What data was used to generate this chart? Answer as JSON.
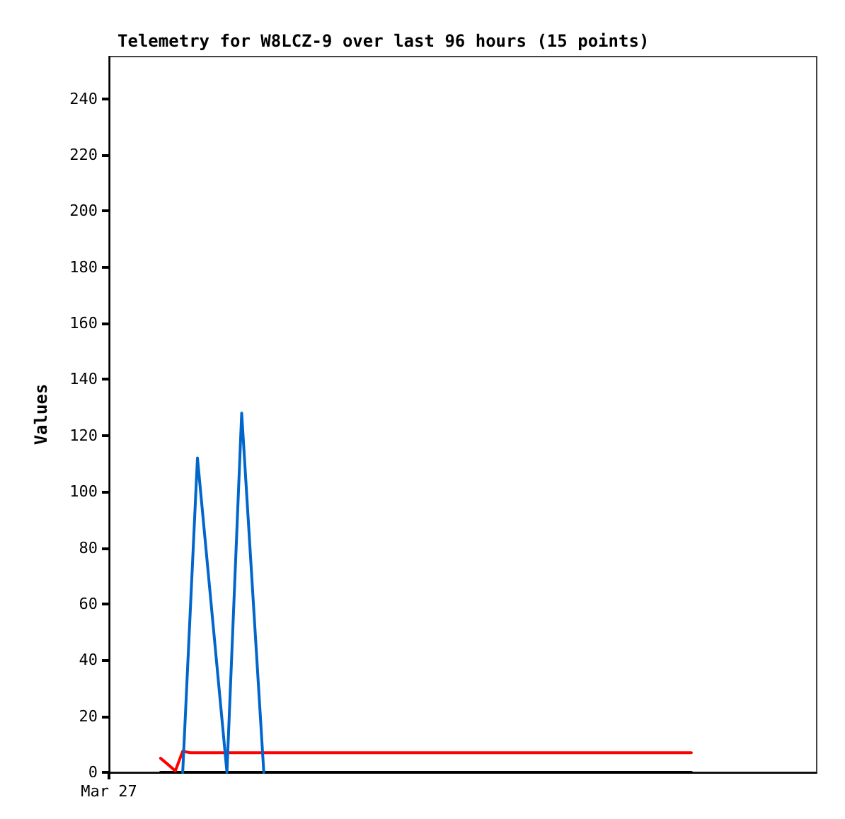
{
  "chart_data": {
    "type": "line",
    "title": "Telemetry for W8LCZ-9 over last 96 hours (15 points)",
    "ylabel": "Values",
    "categories": [
      "Mar 27",
      null,
      null,
      null,
      null,
      null,
      null,
      null,
      null,
      null,
      null,
      null,
      null,
      null,
      null,
      null,
      null,
      null,
      null,
      null,
      null,
      null,
      null,
      null,
      null,
      null,
      null,
      null,
      null,
      null,
      null,
      null,
      null,
      null,
      null,
      null,
      null,
      null,
      null,
      null,
      null,
      null,
      null,
      null,
      null,
      null,
      null,
      null,
      null,
      null,
      null,
      null,
      null,
      null,
      null,
      null,
      null,
      null,
      null,
      null,
      null,
      null,
      null,
      null,
      null,
      null,
      null,
      null,
      null,
      null,
      null,
      null,
      null,
      null,
      null,
      null,
      null,
      null,
      null,
      null,
      null,
      null,
      null,
      null,
      null,
      null,
      null,
      null,
      null,
      null,
      null,
      null,
      null,
      null,
      null,
      null,
      null
    ],
    "ylim": [
      0,
      255
    ],
    "yticks": [
      0,
      20,
      40,
      60,
      80,
      100,
      120,
      140,
      160,
      180,
      200,
      220,
      240
    ],
    "grid": false,
    "marker": "none",
    "line_style": "solid",
    "series": [
      {
        "color": "#000000",
        "values": [
          null,
          null,
          null,
          null,
          null,
          null,
          null,
          0,
          0,
          0,
          0,
          0,
          0,
          0,
          0,
          0,
          0,
          0,
          0,
          0,
          0,
          0,
          0,
          0,
          0,
          0,
          0,
          0,
          0,
          0,
          0,
          0,
          0,
          0,
          0,
          0,
          0,
          0,
          0,
          0,
          0,
          0,
          0,
          0,
          0,
          0,
          0,
          0,
          0,
          0,
          0,
          0,
          0,
          0,
          0,
          0,
          0,
          0,
          0,
          0,
          0,
          0,
          0,
          0,
          0,
          0,
          0,
          0,
          0,
          0,
          0,
          0,
          0,
          0,
          0,
          0,
          0,
          0,
          0,
          0,
          null,
          null,
          null,
          null,
          null,
          null,
          null,
          null,
          null,
          null,
          null,
          null,
          null,
          null,
          null,
          null,
          null
        ]
      },
      {
        "color": "#ff0000",
        "values": [
          null,
          null,
          null,
          null,
          null,
          null,
          null,
          5,
          2.8,
          0.5,
          7.5,
          7,
          7,
          7,
          7,
          7,
          7,
          7,
          7,
          7,
          7,
          7,
          7,
          7,
          7,
          7,
          7,
          7,
          7,
          7,
          7,
          7,
          7,
          7,
          7,
          7,
          7,
          7,
          7,
          7,
          7,
          7,
          7,
          7,
          7,
          7,
          7,
          7,
          7,
          7,
          7,
          7,
          7,
          7,
          7,
          7,
          7,
          7,
          7,
          7,
          7,
          7,
          7,
          7,
          7,
          7,
          7,
          7,
          7,
          7,
          7,
          7,
          7,
          7,
          7,
          7,
          7,
          7,
          7,
          7,
          null,
          null,
          null,
          null,
          null,
          null,
          null,
          null,
          null,
          null,
          null,
          null,
          null,
          null,
          null,
          null,
          null
        ]
      },
      {
        "color": "#0066cc",
        "values": [
          null,
          null,
          null,
          null,
          null,
          null,
          null,
          null,
          null,
          null,
          0,
          null,
          112,
          null,
          null,
          null,
          0,
          null,
          128,
          null,
          null,
          0,
          null,
          null,
          null,
          null,
          null,
          null,
          null,
          null,
          null,
          null,
          null,
          null,
          null,
          null,
          null,
          null,
          null,
          null,
          null,
          null,
          null,
          null,
          null,
          null,
          null,
          null,
          null,
          null,
          null,
          null,
          null,
          null,
          null,
          null,
          null,
          null,
          null,
          null,
          null,
          null,
          null,
          null,
          null,
          null,
          null,
          null,
          null,
          null,
          null,
          null,
          null,
          null,
          null,
          null,
          null,
          null,
          null,
          null,
          null,
          null,
          null,
          null,
          null,
          null,
          null,
          null,
          null,
          null,
          null,
          null,
          null,
          null,
          null,
          null,
          null
        ]
      }
    ]
  }
}
